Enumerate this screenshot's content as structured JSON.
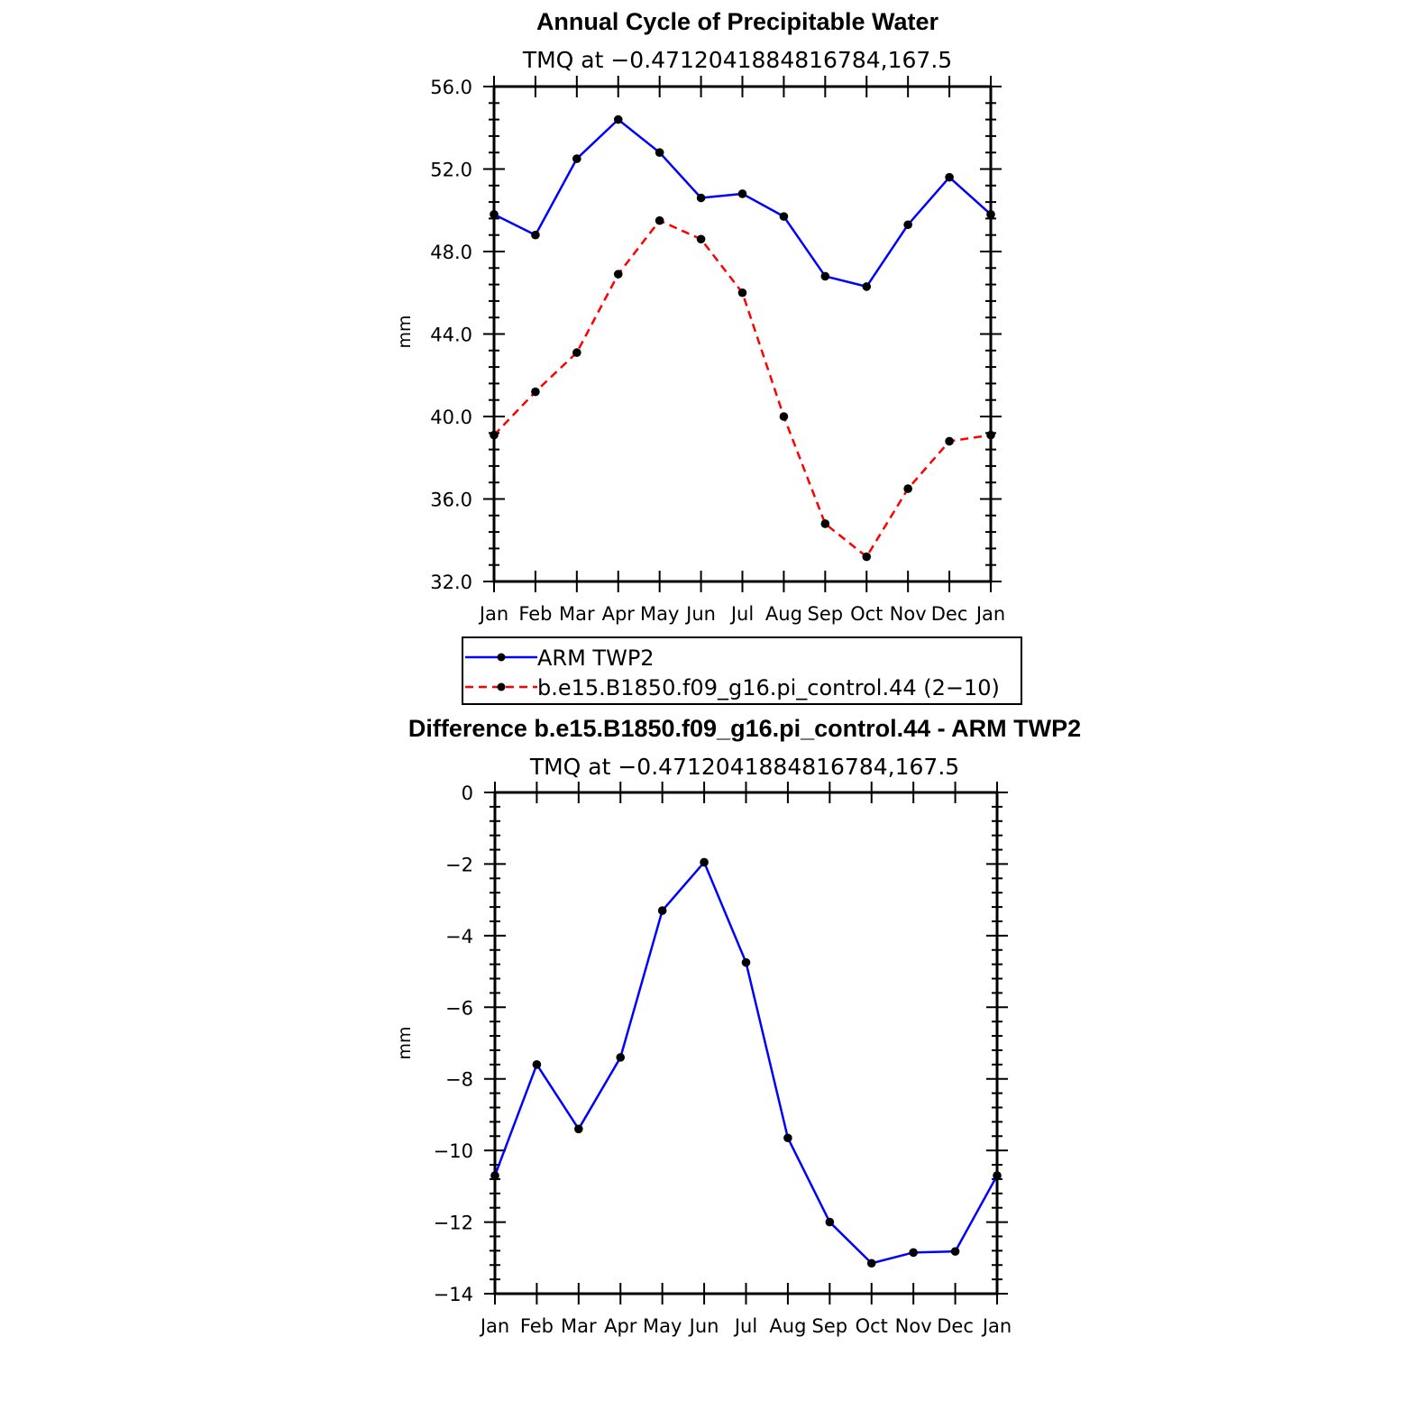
{
  "chart_data": [
    {
      "type": "line",
      "title": "Annual Cycle of Precipitable Water",
      "subtitle": "TMQ at −0.4712041884816784,167.5",
      "ylabel": "mm",
      "xlabel": "",
      "categories": [
        "Jan",
        "Feb",
        "Mar",
        "Apr",
        "May",
        "Jun",
        "Jul",
        "Aug",
        "Sep",
        "Oct",
        "Nov",
        "Dec",
        "Jan"
      ],
      "ylim": [
        32,
        56
      ],
      "yticks": [
        32,
        36,
        40,
        44,
        48,
        52,
        56
      ],
      "ytick_labels": [
        "32.0",
        "36.0",
        "40.0",
        "44.0",
        "48.0",
        "52.0",
        "56.0"
      ],
      "grid": false,
      "legend_position": "below",
      "series": [
        {
          "name": "ARM  TWP2",
          "color": "#0000ff",
          "dash": "solid",
          "values": [
            49.8,
            48.8,
            52.5,
            54.4,
            52.8,
            50.6,
            50.8,
            49.7,
            46.8,
            46.3,
            49.3,
            51.6,
            49.8
          ]
        },
        {
          "name": "b.e15.B1850.f09_g16.pi_control.44 (2−10)",
          "color": "#ff0000",
          "dash": "dashed",
          "values": [
            39.1,
            41.2,
            43.1,
            46.9,
            49.5,
            48.6,
            46.0,
            40.0,
            34.8,
            33.2,
            36.5,
            38.8,
            39.1
          ]
        }
      ]
    },
    {
      "type": "line",
      "title": "Difference b.e15.B1850.f09_g16.pi_control.44 - ARM TWP2",
      "subtitle": "TMQ at −0.4712041884816784,167.5",
      "ylabel": "mm",
      "xlabel": "",
      "categories": [
        "Jan",
        "Feb",
        "Mar",
        "Apr",
        "May",
        "Jun",
        "Jul",
        "Aug",
        "Sep",
        "Oct",
        "Nov",
        "Dec",
        "Jan"
      ],
      "ylim": [
        -14,
        0
      ],
      "yticks": [
        -14,
        -12,
        -10,
        -8,
        -6,
        -4,
        -2,
        0
      ],
      "ytick_labels": [
        "−14",
        "−12",
        "−10",
        "−8",
        "−6",
        "−4",
        "−2",
        "0"
      ],
      "grid": false,
      "series": [
        {
          "color": "#0000ff",
          "dash": "solid",
          "values": [
            -10.7,
            -7.6,
            -9.4,
            -7.4,
            -3.3,
            -1.95,
            -4.75,
            -9.65,
            -12.0,
            -13.15,
            -12.85,
            -12.82,
            -10.7
          ]
        }
      ]
    }
  ]
}
